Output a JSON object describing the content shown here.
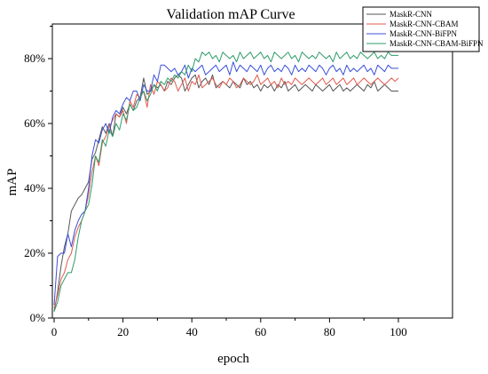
{
  "chart_data": {
    "type": "line",
    "title": "Validation mAP Curve",
    "xlabel": "epoch",
    "ylabel": "mAP",
    "xlim": [
      0,
      100
    ],
    "ylim": [
      0,
      0.85
    ],
    "x_ticks": [
      0,
      20,
      40,
      60,
      80,
      100
    ],
    "x_tick_labels": [
      "0",
      "20",
      "40",
      "60",
      "80",
      "100"
    ],
    "y_ticks": [
      0,
      0.2,
      0.4,
      0.6,
      0.8
    ],
    "y_tick_labels": [
      "0%",
      "20%",
      "40%",
      "60%",
      "80%"
    ],
    "grid": false,
    "legend_position": "top-right",
    "series": [
      {
        "name": "MaskR-CNN",
        "color": "#555555",
        "x": [
          0,
          1,
          2,
          3,
          4,
          5,
          6,
          7,
          8,
          9,
          10,
          11,
          12,
          13,
          14,
          15,
          16,
          17,
          18,
          19,
          20,
          21,
          22,
          23,
          24,
          25,
          26,
          27,
          28,
          29,
          30,
          31,
          32,
          33,
          34,
          35,
          36,
          37,
          38,
          39,
          40,
          41,
          42,
          43,
          44,
          45,
          46,
          47,
          48,
          49,
          50,
          51,
          52,
          53,
          54,
          55,
          56,
          57,
          58,
          59,
          60,
          61,
          62,
          63,
          64,
          65,
          66,
          67,
          68,
          69,
          70,
          71,
          72,
          73,
          74,
          75,
          76,
          77,
          78,
          79,
          80,
          81,
          82,
          83,
          84,
          85,
          86,
          87,
          88,
          89,
          90,
          91,
          92,
          93,
          94,
          95,
          96,
          97,
          98,
          99,
          100
        ],
        "values": [
          0.02,
          0.08,
          0.16,
          0.22,
          0.26,
          0.33,
          0.35,
          0.37,
          0.38,
          0.4,
          0.42,
          0.49,
          0.51,
          0.55,
          0.59,
          0.57,
          0.6,
          0.56,
          0.63,
          0.62,
          0.65,
          0.63,
          0.66,
          0.64,
          0.67,
          0.68,
          0.74,
          0.69,
          0.7,
          0.72,
          0.71,
          0.72,
          0.7,
          0.73,
          0.72,
          0.74,
          0.75,
          0.74,
          0.7,
          0.72,
          0.74,
          0.75,
          0.71,
          0.73,
          0.74,
          0.72,
          0.75,
          0.71,
          0.72,
          0.73,
          0.72,
          0.71,
          0.73,
          0.72,
          0.71,
          0.74,
          0.72,
          0.73,
          0.71,
          0.72,
          0.7,
          0.72,
          0.71,
          0.72,
          0.7,
          0.72,
          0.71,
          0.73,
          0.7,
          0.71,
          0.72,
          0.7,
          0.71,
          0.72,
          0.71,
          0.7,
          0.72,
          0.71,
          0.7,
          0.71,
          0.72,
          0.7,
          0.71,
          0.72,
          0.7,
          0.71,
          0.7,
          0.71,
          0.72,
          0.71,
          0.7,
          0.72,
          0.71,
          0.73,
          0.7,
          0.71,
          0.72,
          0.71,
          0.7,
          0.7,
          0.7
        ]
      },
      {
        "name": "MaskR-CNN-CBAM",
        "color": "#e05a4e",
        "x": [
          0,
          1,
          2,
          3,
          4,
          5,
          6,
          7,
          8,
          9,
          10,
          11,
          12,
          13,
          14,
          15,
          16,
          17,
          18,
          19,
          20,
          21,
          22,
          23,
          24,
          25,
          26,
          27,
          28,
          29,
          30,
          31,
          32,
          33,
          34,
          35,
          36,
          37,
          38,
          39,
          40,
          41,
          42,
          43,
          44,
          45,
          46,
          47,
          48,
          49,
          50,
          51,
          52,
          53,
          54,
          55,
          56,
          57,
          58,
          59,
          60,
          61,
          62,
          63,
          64,
          65,
          66,
          67,
          68,
          69,
          70,
          71,
          72,
          73,
          74,
          75,
          76,
          77,
          78,
          79,
          80,
          81,
          82,
          83,
          84,
          85,
          86,
          87,
          88,
          89,
          90,
          91,
          92,
          93,
          94,
          95,
          96,
          97,
          98,
          99,
          100
        ],
        "values": [
          0.03,
          0.07,
          0.12,
          0.14,
          0.18,
          0.2,
          0.25,
          0.28,
          0.3,
          0.33,
          0.38,
          0.45,
          0.5,
          0.47,
          0.54,
          0.56,
          0.59,
          0.61,
          0.63,
          0.62,
          0.64,
          0.6,
          0.67,
          0.65,
          0.69,
          0.68,
          0.7,
          0.65,
          0.72,
          0.69,
          0.73,
          0.72,
          0.7,
          0.71,
          0.74,
          0.73,
          0.7,
          0.72,
          0.74,
          0.7,
          0.73,
          0.72,
          0.75,
          0.71,
          0.72,
          0.73,
          0.74,
          0.72,
          0.71,
          0.73,
          0.72,
          0.74,
          0.73,
          0.71,
          0.72,
          0.74,
          0.73,
          0.72,
          0.73,
          0.75,
          0.72,
          0.73,
          0.74,
          0.72,
          0.73,
          0.71,
          0.74,
          0.72,
          0.73,
          0.72,
          0.74,
          0.73,
          0.72,
          0.73,
          0.74,
          0.73,
          0.72,
          0.73,
          0.74,
          0.72,
          0.73,
          0.74,
          0.72,
          0.73,
          0.74,
          0.72,
          0.73,
          0.74,
          0.72,
          0.73,
          0.74,
          0.73,
          0.72,
          0.73,
          0.74,
          0.73,
          0.72,
          0.73,
          0.74,
          0.73,
          0.74
        ]
      },
      {
        "name": "MaskR-CNN-BiFPN",
        "color": "#3a4fd8",
        "x": [
          0,
          1,
          2,
          3,
          4,
          5,
          6,
          7,
          8,
          9,
          10,
          11,
          12,
          13,
          14,
          15,
          16,
          17,
          18,
          19,
          20,
          21,
          22,
          23,
          24,
          25,
          26,
          27,
          28,
          29,
          30,
          31,
          32,
          33,
          34,
          35,
          36,
          37,
          38,
          39,
          40,
          41,
          42,
          43,
          44,
          45,
          46,
          47,
          48,
          49,
          50,
          51,
          52,
          53,
          54,
          55,
          56,
          57,
          58,
          59,
          60,
          61,
          62,
          63,
          64,
          65,
          66,
          67,
          68,
          69,
          70,
          71,
          72,
          73,
          74,
          75,
          76,
          77,
          78,
          79,
          80,
          81,
          82,
          83,
          84,
          85,
          86,
          87,
          88,
          89,
          90,
          91,
          92,
          93,
          94,
          95,
          96,
          97,
          98,
          99,
          100
        ],
        "values": [
          0.04,
          0.19,
          0.2,
          0.2,
          0.26,
          0.22,
          0.27,
          0.3,
          0.32,
          0.33,
          0.4,
          0.5,
          0.55,
          0.54,
          0.58,
          0.6,
          0.57,
          0.62,
          0.64,
          0.63,
          0.66,
          0.68,
          0.67,
          0.7,
          0.7,
          0.67,
          0.72,
          0.7,
          0.7,
          0.75,
          0.73,
          0.78,
          0.78,
          0.77,
          0.76,
          0.77,
          0.75,
          0.76,
          0.78,
          0.74,
          0.77,
          0.76,
          0.77,
          0.78,
          0.75,
          0.76,
          0.77,
          0.78,
          0.76,
          0.77,
          0.78,
          0.75,
          0.79,
          0.76,
          0.78,
          0.77,
          0.76,
          0.78,
          0.77,
          0.76,
          0.78,
          0.75,
          0.77,
          0.78,
          0.76,
          0.77,
          0.76,
          0.78,
          0.77,
          0.75,
          0.78,
          0.76,
          0.77,
          0.76,
          0.78,
          0.77,
          0.76,
          0.78,
          0.77,
          0.75,
          0.77,
          0.78,
          0.76,
          0.77,
          0.75,
          0.78,
          0.76,
          0.77,
          0.76,
          0.77,
          0.78,
          0.76,
          0.77,
          0.75,
          0.78,
          0.77,
          0.76,
          0.78,
          0.77,
          0.77,
          0.77
        ]
      },
      {
        "name": "MaskR-CNN-CBAM-BiFPN",
        "color": "#2e9b6a",
        "x": [
          0,
          1,
          2,
          3,
          4,
          5,
          6,
          7,
          8,
          9,
          10,
          11,
          12,
          13,
          14,
          15,
          16,
          17,
          18,
          19,
          20,
          21,
          22,
          23,
          24,
          25,
          26,
          27,
          28,
          29,
          30,
          31,
          32,
          33,
          34,
          35,
          36,
          37,
          38,
          39,
          40,
          41,
          42,
          43,
          44,
          45,
          46,
          47,
          48,
          49,
          50,
          51,
          52,
          53,
          54,
          55,
          56,
          57,
          58,
          59,
          60,
          61,
          62,
          63,
          64,
          65,
          66,
          67,
          68,
          69,
          70,
          71,
          72,
          73,
          74,
          75,
          76,
          77,
          78,
          79,
          80,
          81,
          82,
          83,
          84,
          85,
          86,
          87,
          88,
          89,
          90,
          91,
          92,
          93,
          94,
          95,
          96,
          97,
          98,
          99,
          100
        ],
        "values": [
          0.02,
          0.05,
          0.1,
          0.12,
          0.14,
          0.14,
          0.18,
          0.25,
          0.3,
          0.33,
          0.35,
          0.41,
          0.5,
          0.48,
          0.55,
          0.53,
          0.58,
          0.56,
          0.6,
          0.58,
          0.63,
          0.61,
          0.66,
          0.64,
          0.65,
          0.68,
          0.7,
          0.67,
          0.69,
          0.72,
          0.7,
          0.73,
          0.72,
          0.74,
          0.73,
          0.75,
          0.74,
          0.76,
          0.75,
          0.78,
          0.76,
          0.8,
          0.79,
          0.82,
          0.81,
          0.82,
          0.8,
          0.81,
          0.79,
          0.82,
          0.81,
          0.8,
          0.81,
          0.79,
          0.82,
          0.8,
          0.81,
          0.82,
          0.8,
          0.81,
          0.82,
          0.8,
          0.81,
          0.79,
          0.82,
          0.81,
          0.8,
          0.81,
          0.82,
          0.8,
          0.81,
          0.79,
          0.82,
          0.81,
          0.8,
          0.81,
          0.8,
          0.82,
          0.81,
          0.8,
          0.81,
          0.79,
          0.82,
          0.8,
          0.81,
          0.82,
          0.8,
          0.81,
          0.8,
          0.82,
          0.81,
          0.8,
          0.81,
          0.82,
          0.8,
          0.81,
          0.8,
          0.82,
          0.81,
          0.81,
          0.81
        ]
      }
    ]
  }
}
